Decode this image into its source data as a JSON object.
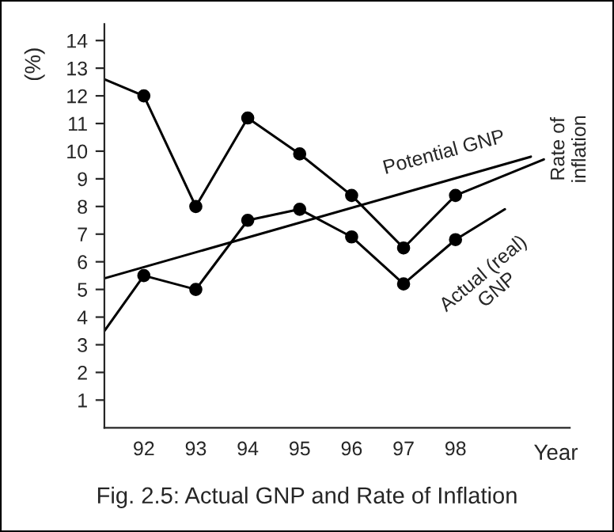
{
  "chart_data": {
    "type": "line",
    "title": "Fig. 2.5: Actual GNP and Rate of Inflation",
    "xlabel": "Year",
    "ylabel": "(%)",
    "series": [
      {
        "color": "#000000",
        "marker": "circle",
        "x": [
          91.24,
          92,
          93,
          94,
          95,
          96,
          97,
          98,
          99.7
        ],
        "values": [
          12.6,
          12.0,
          8.0,
          11.2,
          9.9,
          8.4,
          6.5,
          8.4,
          9.7
        ]
      },
      {
        "color": "#000000",
        "marker": "circle",
        "x": [
          91.24,
          92,
          93,
          94,
          95,
          96,
          97,
          98,
          98.95
        ],
        "values": [
          3.5,
          5.5,
          5.0,
          7.5,
          7.9,
          6.9,
          5.2,
          6.8,
          7.9
        ]
      },
      {
        "color": "#000000",
        "marker": "none",
        "x": [
          91.24,
          99.45
        ],
        "values": [
          5.4,
          9.8
        ]
      }
    ],
    "annotations": [
      "Potential GNP",
      "Rate of\ninflation",
      "Actual (real)\nGNP"
    ],
    "xlim": [
      91.24,
      100.2
    ],
    "ylim": [
      0,
      14.6
    ],
    "xticks": [
      92,
      93,
      94,
      95,
      96,
      97,
      98
    ],
    "yticks": [
      1,
      2,
      3,
      4,
      5,
      6,
      7,
      8,
      9,
      10,
      11,
      12,
      13,
      14
    ],
    "grid": false,
    "legend": false
  }
}
